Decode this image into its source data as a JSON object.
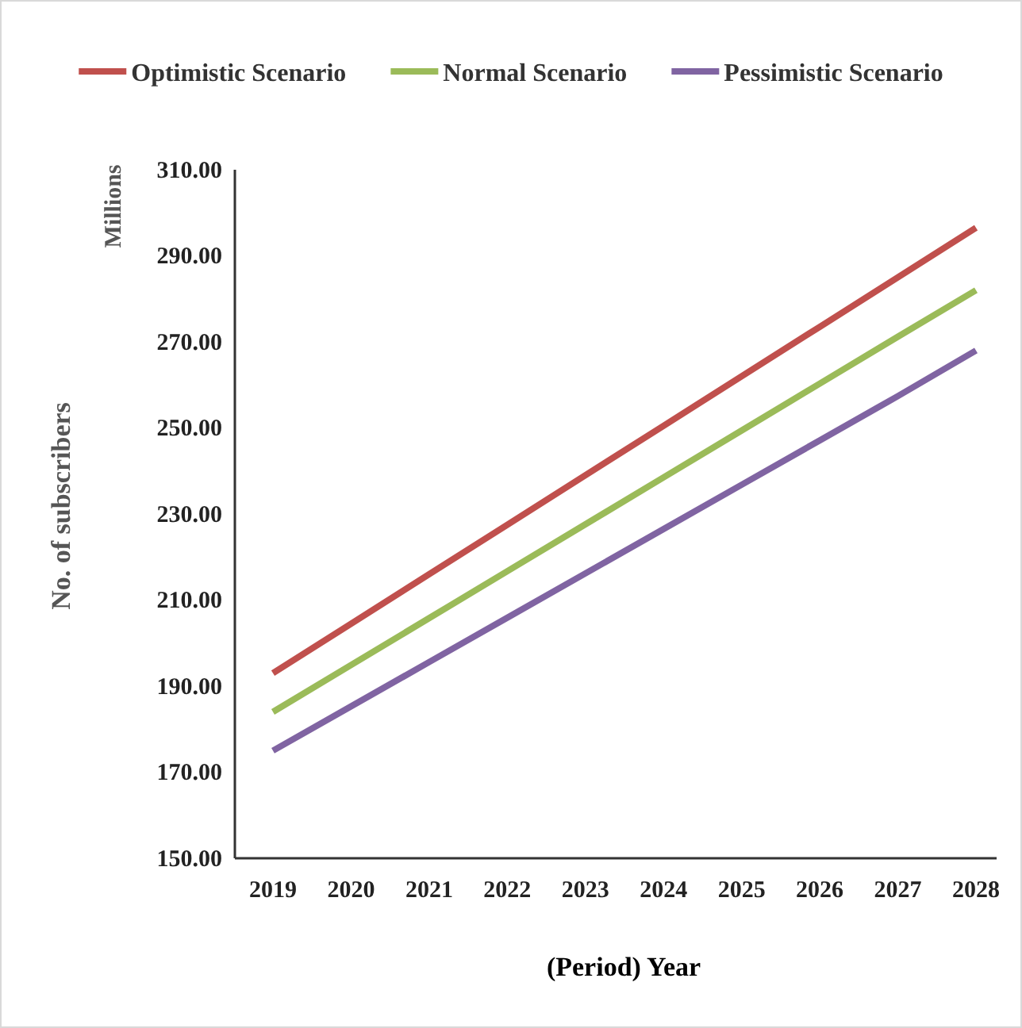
{
  "chart_data": {
    "type": "line",
    "xlabel": "(Period)  Year",
    "ylabel": "No. of subscribers",
    "annotations": [
      "Millions"
    ],
    "categories": [
      "2019",
      "2020",
      "2021",
      "2022",
      "2023",
      "2024",
      "2025",
      "2026",
      "2027",
      "2028"
    ],
    "series": [
      {
        "name": "Optimistic Scenario",
        "color": "#c0504d",
        "values": [
          193,
          204.5,
          216,
          227.5,
          239,
          250.5,
          262,
          273.5,
          285,
          296.5
        ]
      },
      {
        "name": "Normal Scenario",
        "color": "#9bbb59",
        "values": [
          184,
          194.9,
          205.8,
          216.7,
          227.6,
          238.5,
          249.4,
          260.3,
          271.2,
          282
        ]
      },
      {
        "name": "Pessimistic Scenario",
        "color": "#8064a2",
        "values": [
          175,
          185.3,
          195.6,
          205.9,
          216.2,
          226.5,
          236.8,
          247.1,
          257.4,
          268
        ]
      }
    ],
    "ylim": [
      150,
      310
    ],
    "yticks": [
      {
        "value": 150,
        "label": "150.00"
      },
      {
        "value": 170,
        "label": "170.00"
      },
      {
        "value": 190,
        "label": "190.00"
      },
      {
        "value": 210,
        "label": "210.00"
      },
      {
        "value": 230,
        "label": "230.00"
      },
      {
        "value": 250,
        "label": "250.00"
      },
      {
        "value": 270,
        "label": "270.00"
      },
      {
        "value": 290,
        "label": "290.00"
      },
      {
        "value": 310,
        "label": "310.00"
      }
    ],
    "legend": "top",
    "grid": false,
    "marker": "none",
    "line_style": "solid"
  }
}
